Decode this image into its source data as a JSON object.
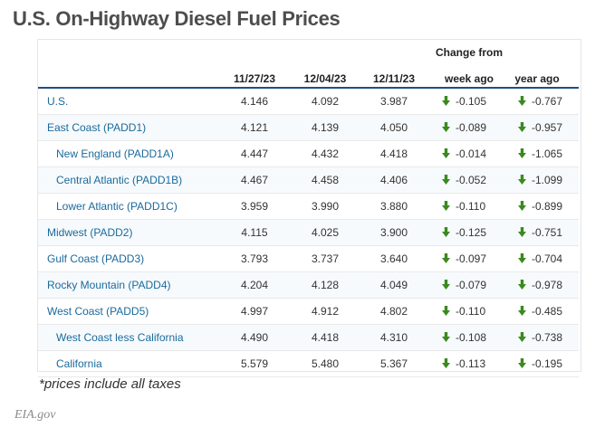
{
  "title": "U.S. On-Highway Diesel Fuel Prices",
  "header": {
    "change_from": "Change from",
    "col1": "11/27/23",
    "col2": "12/04/23",
    "col3": "12/11/23",
    "week_ago": "week ago",
    "year_ago": "year ago"
  },
  "arrow_color": "#3a8a1e",
  "rows": [
    {
      "name": "U.S.",
      "v1": "4.146",
      "v2": "4.092",
      "v3": "3.987",
      "week": "-0.105",
      "year": "-0.767"
    },
    {
      "name": "East Coast (PADD1)",
      "v1": "4.121",
      "v2": "4.139",
      "v3": "4.050",
      "week": "-0.089",
      "year": "-0.957"
    },
    {
      "name": "New England (PADD1A)",
      "v1": "4.447",
      "v2": "4.432",
      "v3": "4.418",
      "week": "-0.014",
      "year": "-1.065"
    },
    {
      "name": "Central Atlantic (PADD1B)",
      "v1": "4.467",
      "v2": "4.458",
      "v3": "4.406",
      "week": "-0.052",
      "year": "-1.099"
    },
    {
      "name": "Lower Atlantic (PADD1C)",
      "v1": "3.959",
      "v2": "3.990",
      "v3": "3.880",
      "week": "-0.110",
      "year": "-0.899"
    },
    {
      "name": "Midwest (PADD2)",
      "v1": "4.115",
      "v2": "4.025",
      "v3": "3.900",
      "week": "-0.125",
      "year": "-0.751"
    },
    {
      "name": "Gulf Coast (PADD3)",
      "v1": "3.793",
      "v2": "3.737",
      "v3": "3.640",
      "week": "-0.097",
      "year": "-0.704"
    },
    {
      "name": "Rocky Mountain (PADD4)",
      "v1": "4.204",
      "v2": "4.128",
      "v3": "4.049",
      "week": "-0.079",
      "year": "-0.978"
    },
    {
      "name": "West Coast (PADD5)",
      "v1": "4.997",
      "v2": "4.912",
      "v3": "4.802",
      "week": "-0.110",
      "year": "-0.485"
    },
    {
      "name": "West Coast less California",
      "v1": "4.490",
      "v2": "4.418",
      "v3": "4.310",
      "week": "-0.108",
      "year": "-0.738"
    },
    {
      "name": "California",
      "v1": "5.579",
      "v2": "5.480",
      "v3": "5.367",
      "week": "-0.113",
      "year": "-0.195"
    }
  ],
  "note": "*prices include all taxes",
  "source": "EIA.gov"
}
